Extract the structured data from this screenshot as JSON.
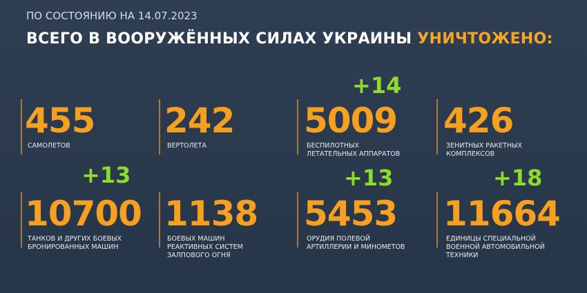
{
  "header": {
    "date_line": "ПО СОСТОЯНИЮ НА 14.07.2023",
    "title": "ВСЕГО В ВООРУЖЁННЫХ СИЛАХ УКРАИНЫ",
    "title_accent": "УНИЧТОЖЕНО:"
  },
  "items": [
    {
      "value": 455,
      "label": [
        "САМОЛЕТОВ"
      ]
    },
    {
      "value": 242,
      "label": [
        "ВЕРТОЛЕТА"
      ]
    },
    {
      "value": 5009,
      "label": [
        "БЕСПИЛОТНЫХ",
        "ЛЕТАТЕЛЬНЫХ АППАРАТОВ"
      ],
      "increment": "+14"
    },
    {
      "value": 426,
      "label": [
        "ЗЕНИТНЫХ РАКЕТНЫХ",
        "КОМПЛЕКСОВ"
      ]
    },
    {
      "value": 10700,
      "label": [
        "ТАНКОВ И ДРУГИХ БОЕВЫХ",
        "БРОНИРОВАННЫХ МАШИН"
      ],
      "increment": "+13"
    },
    {
      "value": 1138,
      "label": [
        "БОЕВЫХ МАШИН",
        "РЕАКТИВНЫХ СИСТЕМ",
        "ЗАЛПОВОГО ОГНЯ"
      ]
    },
    {
      "value": 5453,
      "label": [
        "ОРУДИЯ ПОЛЕВОЙ",
        "АРТИЛЛЕРИИ И МИНОМЕТОВ"
      ],
      "increment": "+13"
    },
    {
      "value": 11664,
      "label": [
        "ЕДИНИЦЫ СПЕЦИАЛЬНОЙ",
        "ВОЕННОЙ АВТОМОБИЛЬНОЙ",
        "ТЕХНИКИ"
      ],
      "increment": "+18"
    }
  ]
}
